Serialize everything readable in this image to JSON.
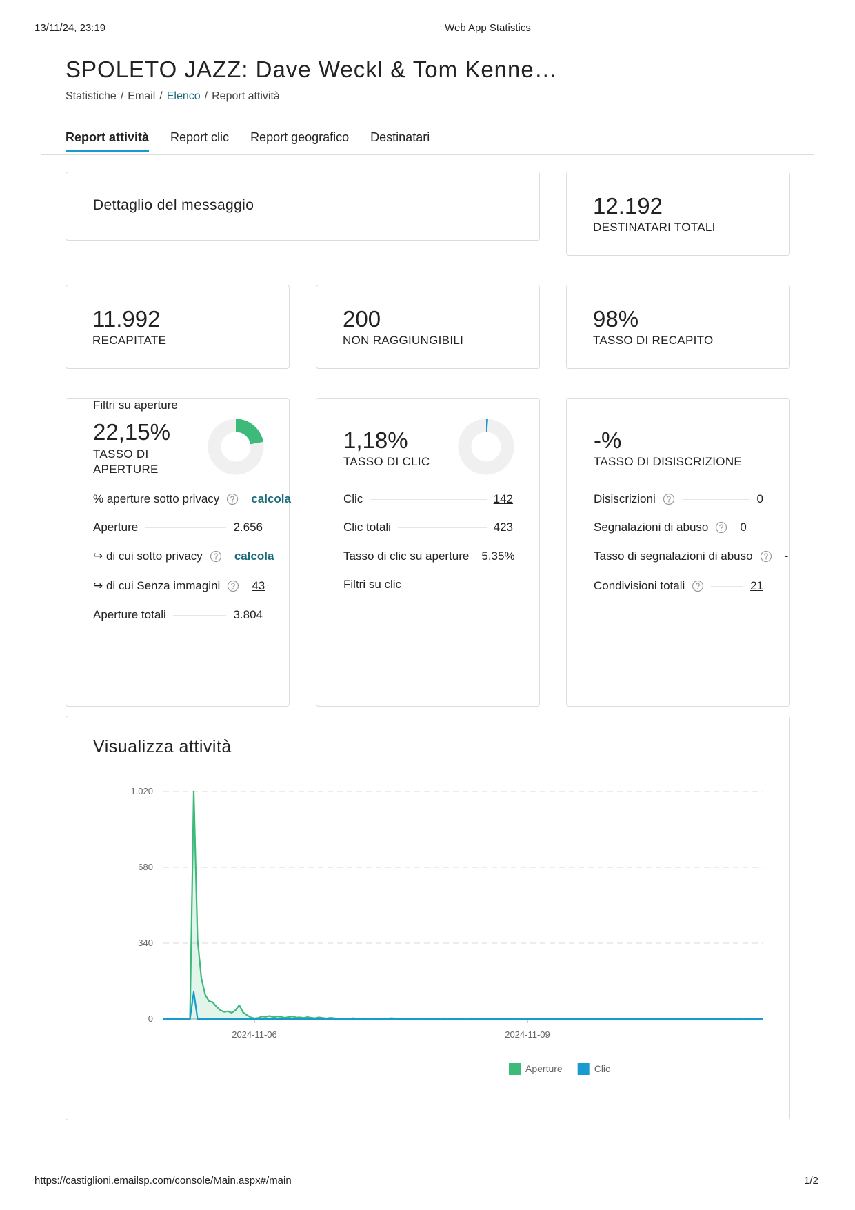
{
  "print_header": {
    "datetime": "13/11/24, 23:19",
    "title": "Web App Statistics"
  },
  "print_footer": {
    "url": "https://castiglioni.emailsp.com/console/Main.aspx#/main",
    "page": "1/2"
  },
  "header": {
    "title": "SPOLETO JAZZ: Dave Weckl & Tom Kenne…",
    "separator": "/",
    "breadcrumb": [
      "Statistiche",
      "Email",
      "Elenco",
      "Report attività"
    ]
  },
  "tabs": [
    "Report attività",
    "Report clic",
    "Report geografico",
    "Destinatari"
  ],
  "message_detail": {
    "title": "Dettaglio del messaggio"
  },
  "stats": [
    {
      "value": "12.192",
      "label": "DESTINATARI TOTALI"
    },
    {
      "value": "11.992",
      "label": "RECAPITATE"
    },
    {
      "value": "200",
      "label": "NON RAGGIUNGIBILI"
    },
    {
      "value": "98%",
      "label": "TASSO DI RECAPITO"
    }
  ],
  "open_rate": {
    "value": 22.15,
    "label": "22,15%",
    "caption": "TASSO DI APERTURE",
    "color": "#3dba7a",
    "rows": [
      {
        "label": "% aperture sotto privacy",
        "value": "calcola",
        "help": true,
        "leader": false,
        "style": "action"
      },
      {
        "label": "Aperture",
        "value": "2.656",
        "help": false,
        "leader": true,
        "style": "link"
      },
      {
        "label": "↪ di cui sotto privacy",
        "value": "calcola",
        "help": true,
        "leader": false,
        "style": "action"
      },
      {
        "label": "↪ di cui Senza immagini",
        "value": "43",
        "help": true,
        "leader": false,
        "style": "link"
      },
      {
        "label": "Aperture totali",
        "value": "3.804",
        "help": false,
        "leader": true,
        "style": "plain"
      }
    ],
    "link": "Filtri su aperture"
  },
  "click_rate": {
    "value": 1.18,
    "label": "1,18%",
    "caption": "TASSO DI CLIC",
    "color": "#1a9bd0",
    "rows": [
      {
        "label": "Clic",
        "value": "142",
        "help": false,
        "leader": true,
        "style": "link"
      },
      {
        "label": "Clic totali",
        "value": "423",
        "help": false,
        "leader": true,
        "style": "link"
      },
      {
        "label": "Tasso di clic su aperture",
        "value": "5,35%",
        "help": false,
        "leader": false,
        "style": "plain"
      }
    ],
    "link": "Filtri su clic"
  },
  "unsubscribe": {
    "label": "-%",
    "caption": "TASSO DI DISISCRIZIONE",
    "rows": [
      {
        "label": "Disiscrizioni",
        "value": "0",
        "help": true,
        "leader": true,
        "style": "plain"
      },
      {
        "label": "Segnalazioni di abuso",
        "value": "0",
        "help": true,
        "leader": false,
        "style": "plain"
      },
      {
        "label": "Tasso di segnalazioni di abuso",
        "value": "-",
        "help": true,
        "leader": false,
        "style": "plain"
      },
      {
        "label": "Condivisioni totali",
        "value": "21",
        "help": true,
        "leader": true,
        "style": "link"
      }
    ]
  },
  "activity": {
    "title": "Visualizza attività",
    "chart": {
      "type": "line",
      "xlim": [
        0,
        158
      ],
      "xticks": [
        {
          "value": 24,
          "label": "2024-11-06"
        },
        {
          "value": 96,
          "label": "2024-11-09"
        }
      ],
      "ylim": [
        0,
        1020
      ],
      "yticks": [
        0,
        340,
        680,
        {
          "value": 1020,
          "label": "1.020"
        }
      ],
      "grid": true,
      "series": [
        {
          "name": "Aperture",
          "color": "#3dba7a",
          "area": true,
          "values": [
            0,
            0,
            0,
            0,
            0,
            0,
            0,
            0,
            1020,
            356,
            183,
            110,
            80,
            75,
            55,
            40,
            32,
            35,
            28,
            40,
            62,
            30,
            18,
            8,
            3,
            5,
            12,
            10,
            14,
            8,
            12,
            10,
            6,
            9,
            12,
            7,
            8,
            5,
            9,
            6,
            4,
            8,
            5,
            3,
            6,
            4,
            2,
            3,
            1,
            2,
            4,
            2,
            1,
            3,
            2,
            2,
            3,
            1,
            2,
            2,
            4,
            3,
            1,
            2,
            1,
            2,
            1,
            2,
            3,
            1,
            1,
            2,
            2,
            1,
            3,
            1,
            2,
            1,
            1,
            2,
            1,
            3,
            2,
            1,
            1,
            2,
            1,
            1,
            2,
            1,
            2,
            1,
            1,
            3,
            1,
            1,
            2,
            1,
            1,
            1,
            2,
            1,
            1,
            2,
            1,
            1,
            1,
            2,
            1,
            1,
            1,
            2,
            1,
            1,
            1,
            2,
            1,
            1,
            2,
            1,
            1,
            1,
            1,
            2,
            1,
            1,
            1,
            1,
            1,
            2,
            1,
            1,
            1,
            1,
            2,
            1,
            1,
            2,
            1,
            1,
            1,
            1,
            2,
            1,
            1,
            1,
            1,
            1,
            2,
            1,
            1,
            1,
            3,
            1,
            2,
            1,
            2,
            1,
            1
          ]
        },
        {
          "name": "Clic",
          "color": "#1a9bd0",
          "area": false,
          "values": [
            0,
            0,
            0,
            0,
            0,
            0,
            0,
            0,
            121,
            0,
            0,
            0,
            0,
            0,
            0,
            0,
            0,
            0,
            0,
            0,
            0,
            0,
            0,
            0,
            0,
            0,
            0,
            0,
            0,
            0,
            0,
            0,
            0,
            0,
            0,
            0,
            0,
            0,
            0,
            0,
            0,
            0,
            0,
            0,
            0,
            0,
            0,
            0,
            0,
            0,
            0,
            0,
            0,
            0,
            0,
            0,
            0,
            0,
            0,
            0,
            0,
            0,
            0,
            0,
            0,
            0,
            0,
            0,
            0,
            0,
            0,
            0,
            0,
            0,
            0,
            0,
            0,
            0,
            0,
            0,
            0,
            0,
            0,
            0,
            0,
            0,
            0,
            0,
            0,
            0,
            0,
            0,
            0,
            0,
            0,
            0,
            0,
            0,
            0,
            0,
            0,
            0,
            0,
            0,
            0,
            0,
            0,
            0,
            0,
            0,
            0,
            0,
            0,
            0,
            0,
            0,
            0,
            0,
            0,
            0,
            0,
            0,
            0,
            0,
            0,
            0,
            0,
            0,
            0,
            0,
            0,
            0,
            0,
            0,
            0,
            0,
            0,
            0,
            0,
            0,
            0,
            0,
            0,
            0,
            0,
            0,
            0,
            0,
            0,
            0,
            0,
            0,
            0,
            0,
            0,
            0,
            0,
            0,
            0
          ]
        }
      ]
    }
  }
}
